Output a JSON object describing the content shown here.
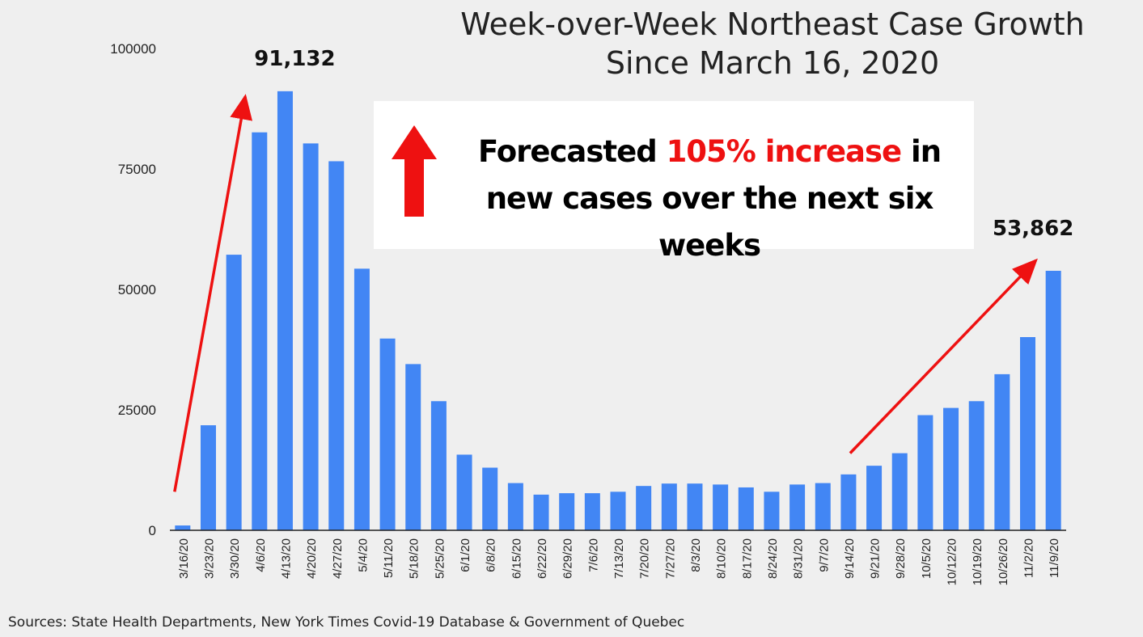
{
  "chart_data": {
    "type": "bar",
    "title": "Week-over-Week Northeast Case Growth",
    "subtitle": "Since March 16, 2020",
    "categories": [
      "3/16/20",
      "3/23/20",
      "3/30/20",
      "4/6/20",
      "4/13/20",
      "4/20/20",
      "4/27/20",
      "5/4/20",
      "5/11/20",
      "5/18/20",
      "5/25/20",
      "6/1/20",
      "6/8/20",
      "6/15/20",
      "6/22/20",
      "6/29/20",
      "7/6/20",
      "7/13/20",
      "7/20/20",
      "7/27/20",
      "8/3/20",
      "8/10/20",
      "8/17/20",
      "8/24/20",
      "8/31/20",
      "9/7/20",
      "9/14/20",
      "9/21/20",
      "9/28/20",
      "10/5/20",
      "10/12/20",
      "10/19/20",
      "10/26/20",
      "11/2/20",
      "11/9/20"
    ],
    "values": [
      1000,
      21800,
      57200,
      82600,
      91132,
      80300,
      76600,
      54300,
      39800,
      34500,
      26800,
      15700,
      13000,
      9800,
      7400,
      7700,
      7700,
      8000,
      9200,
      9700,
      9700,
      9500,
      8900,
      8000,
      9500,
      9800,
      11600,
      13400,
      16000,
      23900,
      25400,
      26800,
      32400,
      40100,
      53862
    ],
    "ylim": [
      0,
      100000
    ],
    "yticks": [
      0,
      25000,
      50000,
      75000,
      100000
    ],
    "ytick_labels": [
      "0",
      "25000",
      "50000",
      "75000",
      "100000"
    ],
    "bar_color": "#4286f4",
    "annotations": {
      "peak_label": "91,132",
      "latest_label": "53,862",
      "arrow_color": "#ee1111"
    }
  },
  "callout": {
    "prefix": "Forecasted ",
    "highlight": "105% increase",
    "suffix": " in new cases over the next six weeks",
    "highlight_color": "#ee1111"
  },
  "footer": {
    "source": "Sources: State Health Departments, New York Times Covid-19 Database & Government of Quebec"
  }
}
